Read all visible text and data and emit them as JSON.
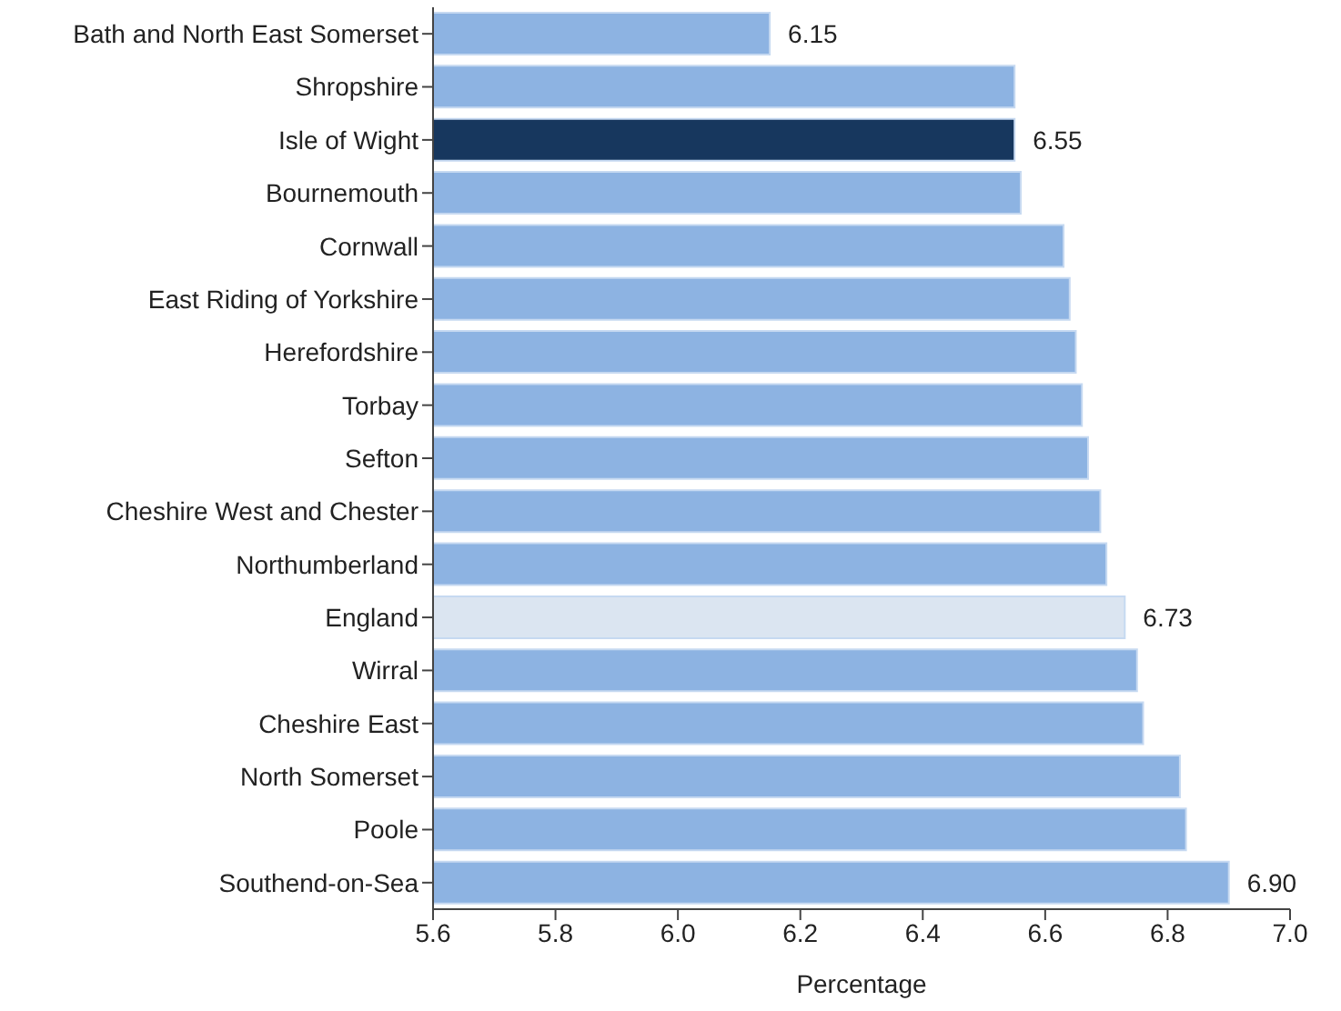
{
  "chart_data": {
    "type": "bar",
    "orientation": "horizontal",
    "xlabel": "Percentage",
    "categories": [
      "Bath and North East Somerset",
      "Shropshire",
      "Isle of Wight",
      "Bournemouth",
      "Cornwall",
      "East Riding of Yorkshire",
      "Herefordshire",
      "Torbay",
      "Sefton",
      "Cheshire West and Chester",
      "Northumberland",
      "England",
      "Wirral",
      "Cheshire East",
      "North Somerset",
      "Poole",
      "Southend-on-Sea"
    ],
    "values": [
      6.15,
      6.55,
      6.55,
      6.56,
      6.63,
      6.64,
      6.65,
      6.66,
      6.67,
      6.69,
      6.7,
      6.73,
      6.75,
      6.76,
      6.82,
      6.83,
      6.9
    ],
    "value_labels": [
      "6.15",
      null,
      "6.55",
      null,
      null,
      null,
      null,
      null,
      null,
      null,
      null,
      "6.73",
      null,
      null,
      null,
      null,
      "6.90"
    ],
    "colors": [
      "#8db3e2",
      "#8db3e2",
      "#17375e",
      "#8db3e2",
      "#8db3e2",
      "#8db3e2",
      "#8db3e2",
      "#8db3e2",
      "#8db3e2",
      "#8db3e2",
      "#8db3e2",
      "#dbe5f1",
      "#8db3e2",
      "#8db3e2",
      "#8db3e2",
      "#8db3e2",
      "#8db3e2"
    ],
    "xlim": [
      5.6,
      7.0
    ],
    "xticks": [
      5.6,
      5.8,
      {
        "value": 6,
        "label": "6.0"
      },
      6.2,
      6.4,
      6.6,
      6.8,
      {
        "value": 7,
        "label": "7.0"
      }
    ],
    "grid": false,
    "legend": false
  }
}
